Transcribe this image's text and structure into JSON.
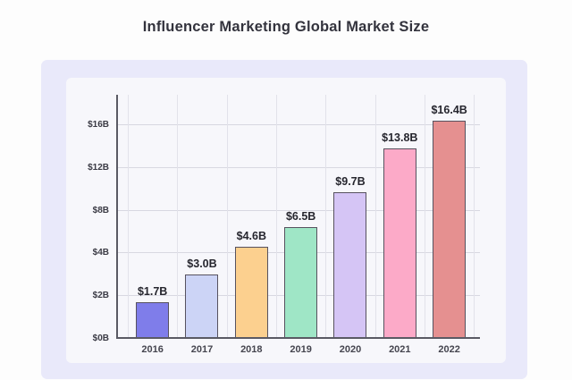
{
  "title": "Influencer Marketing Global Market Size",
  "colors": {
    "page_bg": "#fdfdfd",
    "panel_bg": "#e9e9fa",
    "card_bg": "#f7f7fb",
    "axis": "#5a5a64",
    "grid_h": "#d8d8e1",
    "grid_v": "#e2e2ea",
    "bar_border": "#57525f",
    "title_text": "#33333d",
    "tick_text": "#3b3b45",
    "year_text": "#45454f",
    "value_text": "#26262e"
  },
  "chart_data": {
    "type": "bar",
    "title": "Influencer Marketing Global Market Size",
    "categories": [
      "2016",
      "2017",
      "2018",
      "2019",
      "2020",
      "2021",
      "2022"
    ],
    "values": [
      1.7,
      3.0,
      4.6,
      6.5,
      9.7,
      13.8,
      16.4
    ],
    "value_labels": [
      "$1.7B",
      "$3.0B",
      "$4.6B",
      "$6.5B",
      "$9.7B",
      "$13.8B",
      "$16.4B"
    ],
    "bar_colors": [
      "#7f7dea",
      "#ccd4f6",
      "#fcd08f",
      "#9fe6c6",
      "#d5c5f5",
      "#fcaac8",
      "#e59090"
    ],
    "y_ticks": [
      {
        "label": "$0B",
        "value": 0
      },
      {
        "label": "$2B",
        "value": 2
      },
      {
        "label": "$4B",
        "value": 4
      },
      {
        "label": "$8B",
        "value": 8
      },
      {
        "label": "$12B",
        "value": 12
      },
      {
        "label": "$16B",
        "value": 16
      }
    ],
    "xlabel": "",
    "ylabel": "",
    "grid": true,
    "legend": false,
    "axis_note": "y-axis tick stops 0,2,4,8,12,16 are equally spaced (piecewise-linear scale)"
  }
}
